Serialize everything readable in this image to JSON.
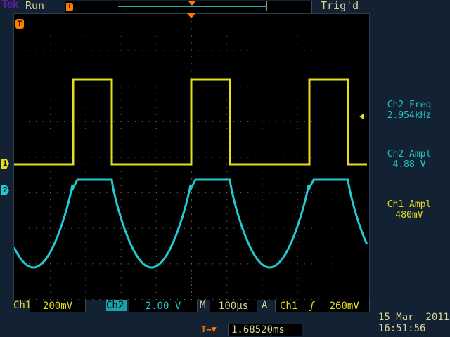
{
  "header": {
    "brand": "Tek",
    "acq_state": "Run",
    "trigger_status": "Trig'd"
  },
  "markers": {
    "trigger_pos": "T",
    "ch1": "1",
    "ch2": "2"
  },
  "measurements": [
    {
      "label": "Ch2 Freq",
      "value": "2.954kHz"
    },
    {
      "label": "Ch2 Ampl",
      "value": "4.88 V"
    },
    {
      "label": "Ch1 Ampl",
      "value": "480mV"
    }
  ],
  "status": {
    "ch1_label": "Ch1",
    "ch1_scale": "200mV",
    "ch2_label": "Ch2",
    "ch2_scale": "2.00 V",
    "timebase_label": "M",
    "timebase": "100µs",
    "trigger_label": "A",
    "trigger_source": "Ch1",
    "trigger_slope": "rising-edge-icon",
    "trigger_slope_glyph": "ʃ",
    "trigger_level": "260mV",
    "trigger_offset_icon": "T→▼",
    "trigger_offset": "1.68520ms"
  },
  "datetime": {
    "date": "15 Mar  2011",
    "time": "16:51:56"
  },
  "colors": {
    "ch1": "#e6dc20",
    "ch2": "#24c8d0",
    "trigger": "#ff7b00",
    "background": "#132233"
  }
}
